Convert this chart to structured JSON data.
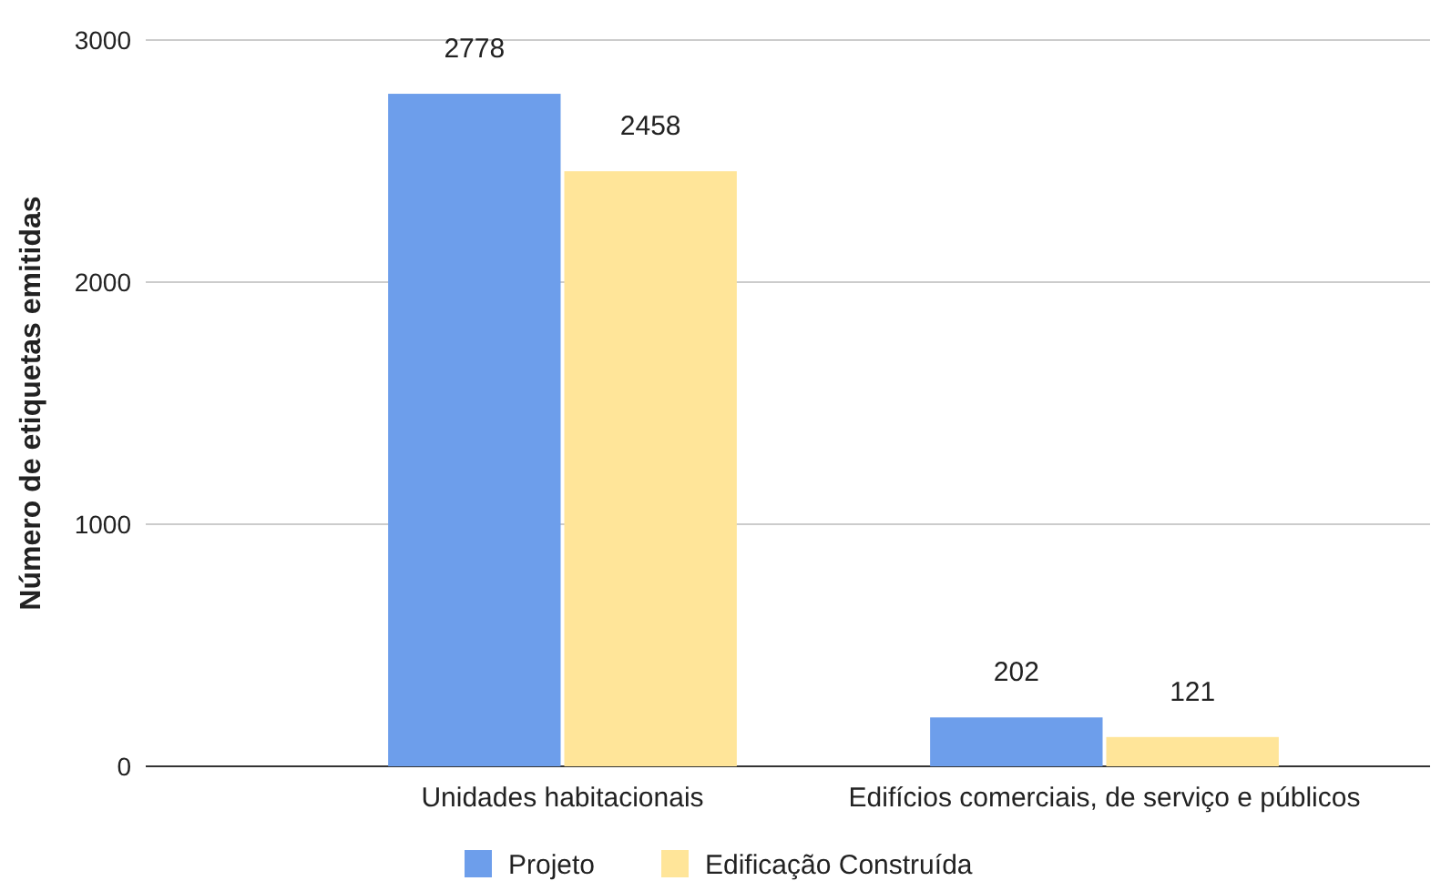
{
  "chart_data": {
    "type": "bar",
    "ylabel": "Número de etiquetas emitidas",
    "categories": [
      "Unidades habitacionais",
      "Edifícios comerciais, de serviço e públicos"
    ],
    "series": [
      {
        "name": "Projeto",
        "color": "#6d9eeb",
        "values": [
          2778,
          202
        ]
      },
      {
        "name": "Edificação Construída",
        "color": "#ffe599",
        "values": [
          2458,
          121
        ]
      }
    ],
    "ylim": [
      0,
      3000
    ],
    "yticks": [
      0,
      1000,
      2000,
      3000
    ],
    "grid": "y",
    "data_labels": true,
    "legend": "bottom"
  }
}
